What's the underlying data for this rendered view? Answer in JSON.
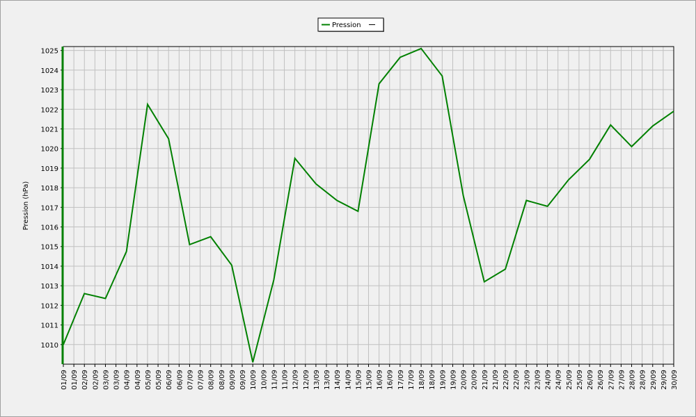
{
  "chart_data": {
    "type": "line",
    "y_label": "Pression (hPa)",
    "xticks": [
      "01/09",
      "01/09",
      "02/09",
      "02/09",
      "03/09",
      "03/09",
      "04/09",
      "04/09",
      "05/09",
      "05/09",
      "06/09",
      "06/09",
      "07/09",
      "07/09",
      "08/09",
      "08/09",
      "09/09",
      "09/09",
      "10/09",
      "10/09",
      "11/09",
      "11/09",
      "12/09",
      "12/09",
      "13/09",
      "13/09",
      "14/09",
      "14/09",
      "15/09",
      "15/09",
      "16/09",
      "16/09",
      "17/09",
      "17/09",
      "18/09",
      "18/09",
      "19/09",
      "19/09",
      "20/09",
      "20/09",
      "21/09",
      "21/09",
      "22/09",
      "22/09",
      "23/09",
      "23/09",
      "24/09",
      "24/09",
      "25/09",
      "25/09",
      "26/09",
      "26/09",
      "27/09",
      "27/09",
      "28/09",
      "28/09",
      "29/09",
      "29/09",
      "30/09"
    ],
    "x": [
      "01/09",
      "02/09",
      "03/09",
      "04/09",
      "05/09",
      "06/09",
      "07/09",
      "08/09",
      "09/09",
      "10/09",
      "11/09",
      "12/09",
      "13/09",
      "14/09",
      "15/09",
      "16/09",
      "17/09",
      "18/09",
      "19/09",
      "20/09",
      "21/09",
      "22/09",
      "23/09",
      "24/09",
      "25/09",
      "26/09",
      "27/09",
      "28/09",
      "29/09",
      "30/09"
    ],
    "series": [
      {
        "name": "Pression",
        "color": "#008000",
        "values": [
          1010.0,
          1012.6,
          1012.35,
          1014.75,
          1022.25,
          1020.5,
          1015.1,
          1015.5,
          1014.05,
          1009.1,
          1013.3,
          1019.5,
          1018.2,
          1017.35,
          1016.8,
          1023.3,
          1024.65,
          1025.1,
          1023.7,
          1017.6,
          1013.2,
          1013.85,
          1017.35,
          1017.05,
          1018.4,
          1019.45,
          1021.2,
          1020.1,
          1021.15,
          1021.9
        ]
      }
    ],
    "ylim": [
      1009,
      1025.2
    ],
    "yticks": [
      1010,
      1011,
      1012,
      1013,
      1014,
      1015,
      1016,
      1017,
      1018,
      1019,
      1020,
      1021,
      1022,
      1023,
      1024,
      1025
    ],
    "grid": true,
    "legend": "top"
  }
}
